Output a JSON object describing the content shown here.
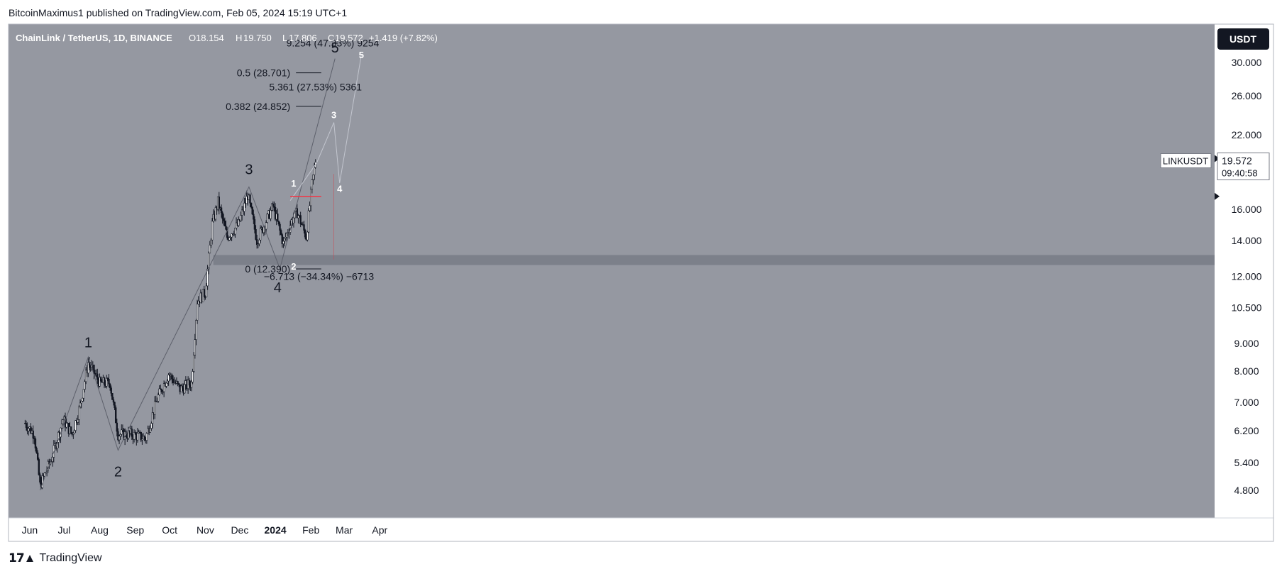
{
  "header": {
    "publisher": "BitcoinMaximus1 published on TradingView.com, Feb 05, 2024 15:19 UTC+1"
  },
  "legend": {
    "symbol": "ChainLink / TetherUS, 1D, BINANCE",
    "open_label": "O",
    "open": "18.154",
    "high_label": "H",
    "high": "19.750",
    "low_label": "L",
    "low": "17.806",
    "close_label": "C",
    "close": "19.572",
    "change": "+1.419 (+7.82%)"
  },
  "price_badge": {
    "currency": "USDT",
    "ticker": "LINKUSDT",
    "last_price": "19.572",
    "countdown": "09:40:58"
  },
  "footer": {
    "brand": "TradingView"
  },
  "colors": {
    "plot_bg": "#9598a1",
    "support_zone": "#787b86",
    "red_line": "#f23645",
    "candle_up": "#ffffff",
    "candle_down": "#131722"
  },
  "chart_data": {
    "type": "candlestick",
    "title": "ChainLink / TetherUS, 1D, BINANCE",
    "y_scale": "log",
    "ylim": [
      4.2,
      35
    ],
    "y_ticks": [
      "30.000",
      "26.000",
      "22.000",
      "16.000",
      "14.000",
      "12.000",
      "10.500",
      "9.000",
      "8.000",
      "7.000",
      "6.200",
      "5.400",
      "4.800"
    ],
    "x_ticks": [
      "Jun",
      "Jul",
      "Aug",
      "Sep",
      "Oct",
      "Nov",
      "Dec",
      "2024",
      "Feb",
      "Mar",
      "Apr"
    ],
    "trend_path": [
      {
        "date": "2023-05-28",
        "close": 6.4
      },
      {
        "date": "2023-06-05",
        "close": 6.1
      },
      {
        "date": "2023-06-10",
        "close": 4.9
      },
      {
        "date": "2023-06-20",
        "close": 5.5
      },
      {
        "date": "2023-06-30",
        "close": 6.5
      },
      {
        "date": "2023-07-08",
        "close": 6.1
      },
      {
        "date": "2023-07-15",
        "close": 6.9
      },
      {
        "date": "2023-07-22",
        "close": 8.3
      },
      {
        "date": "2023-08-01",
        "close": 7.6
      },
      {
        "date": "2023-08-10",
        "close": 7.6
      },
      {
        "date": "2023-08-17",
        "close": 6.1
      },
      {
        "date": "2023-08-28",
        "close": 6.1
      },
      {
        "date": "2023-09-10",
        "close": 6.0
      },
      {
        "date": "2023-09-20",
        "close": 7.1
      },
      {
        "date": "2023-09-30",
        "close": 7.9
      },
      {
        "date": "2023-10-10",
        "close": 7.4
      },
      {
        "date": "2023-10-20",
        "close": 7.6
      },
      {
        "date": "2023-10-25",
        "close": 10.8
      },
      {
        "date": "2023-11-01",
        "close": 11.2
      },
      {
        "date": "2023-11-07",
        "close": 15.0
      },
      {
        "date": "2023-11-12",
        "close": 16.5
      },
      {
        "date": "2023-11-20",
        "close": 14.2
      },
      {
        "date": "2023-11-30",
        "close": 15.0
      },
      {
        "date": "2023-12-08",
        "close": 17.0
      },
      {
        "date": "2023-12-16",
        "close": 14.0
      },
      {
        "date": "2023-12-30",
        "close": 16.2
      },
      {
        "date": "2024-01-08",
        "close": 13.8
      },
      {
        "date": "2024-01-15",
        "close": 15.2
      },
      {
        "date": "2024-01-20",
        "close": 15.8
      },
      {
        "date": "2024-01-28",
        "close": 14.2
      },
      {
        "date": "2024-02-02",
        "close": 17.8
      },
      {
        "date": "2024-02-05",
        "close": 19.572
      }
    ],
    "wave_labels_major": [
      {
        "text": "1",
        "date": "2023-07-22",
        "price": 9.05
      },
      {
        "text": "2",
        "date": "2023-08-17",
        "price": 5.2
      },
      {
        "text": "3",
        "date": "2023-12-09",
        "price": 19.0
      },
      {
        "text": "4",
        "date": "2024-01-03",
        "price": 11.45
      },
      {
        "text": "5",
        "date": "2024-02-22",
        "price": 32.0
      }
    ],
    "wave_labels_minor": [
      {
        "text": "1",
        "date": "2024-01-17",
        "price": 17.9
      },
      {
        "text": "2",
        "date": "2024-01-17",
        "price": 12.55
      },
      {
        "text": "3",
        "date": "2024-02-21",
        "price": 24.0
      },
      {
        "text": "4",
        "date": "2024-02-26",
        "price": 17.5
      },
      {
        "text": "5",
        "date": "2024-03-16",
        "price": 31.0
      }
    ],
    "major_wave_path": [
      {
        "date": "2023-06-10",
        "price": 4.8
      },
      {
        "date": "2023-07-22",
        "price": 8.5
      },
      {
        "date": "2023-08-17",
        "price": 5.7
      },
      {
        "date": "2023-12-09",
        "price": 17.6
      },
      {
        "date": "2024-01-05",
        "price": 12.4
      },
      {
        "date": "2024-02-22",
        "price": 30.5
      }
    ],
    "minor_wave_path": [
      {
        "date": "2024-01-14",
        "price": 16.6
      },
      {
        "date": "2024-02-06",
        "price": 19.5
      },
      {
        "date": "2024-02-21",
        "price": 23.2
      },
      {
        "date": "2024-02-26",
        "price": 17.9
      },
      {
        "date": "2024-03-16",
        "price": 31.0
      }
    ],
    "fib_levels": [
      {
        "label": "0.5 (28.701)",
        "price": 28.701
      },
      {
        "label": "0.382 (24.852)",
        "price": 24.852
      },
      {
        "label": "0 (12.390)",
        "price": 12.39
      }
    ],
    "measure_labels": [
      {
        "text": "9.254 (47.33%) 9254",
        "date": "2024-02-20",
        "price": 32.6
      },
      {
        "text": "5.361 (27.53%) 5361",
        "date": "2024-02-05",
        "price": 27.0
      },
      {
        "text": "−6.713 (−34.34%) −6713",
        "date": "2024-02-08",
        "price": 12.0
      }
    ],
    "support_zone": [
      12.6,
      13.15
    ],
    "breakout_line": {
      "price": 16.9,
      "date_from": "2024-01-14",
      "date_to": "2024-02-10"
    },
    "projection_line": {
      "date": "2024-02-21",
      "price_from": 12.9,
      "price_to": 18.6
    },
    "last_close": 19.572
  }
}
